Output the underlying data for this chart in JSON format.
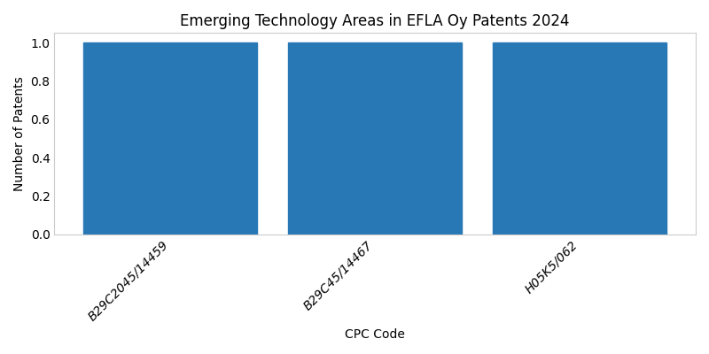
{
  "title": "Emerging Technology Areas in EFLA Oy Patents 2024",
  "xlabel": "CPC Code",
  "ylabel": "Number of Patents",
  "categories": [
    "B29C2045/14459",
    "B29C45/14467",
    "H05K5/062"
  ],
  "values": [
    1,
    1,
    1
  ],
  "bar_color": "#2878b5",
  "ylim": [
    0,
    1.05
  ],
  "yticks": [
    0.0,
    0.2,
    0.4,
    0.6,
    0.8,
    1.0
  ],
  "figsize": [
    8.0,
    4.0
  ],
  "dpi": 100,
  "bar_width": 0.85
}
